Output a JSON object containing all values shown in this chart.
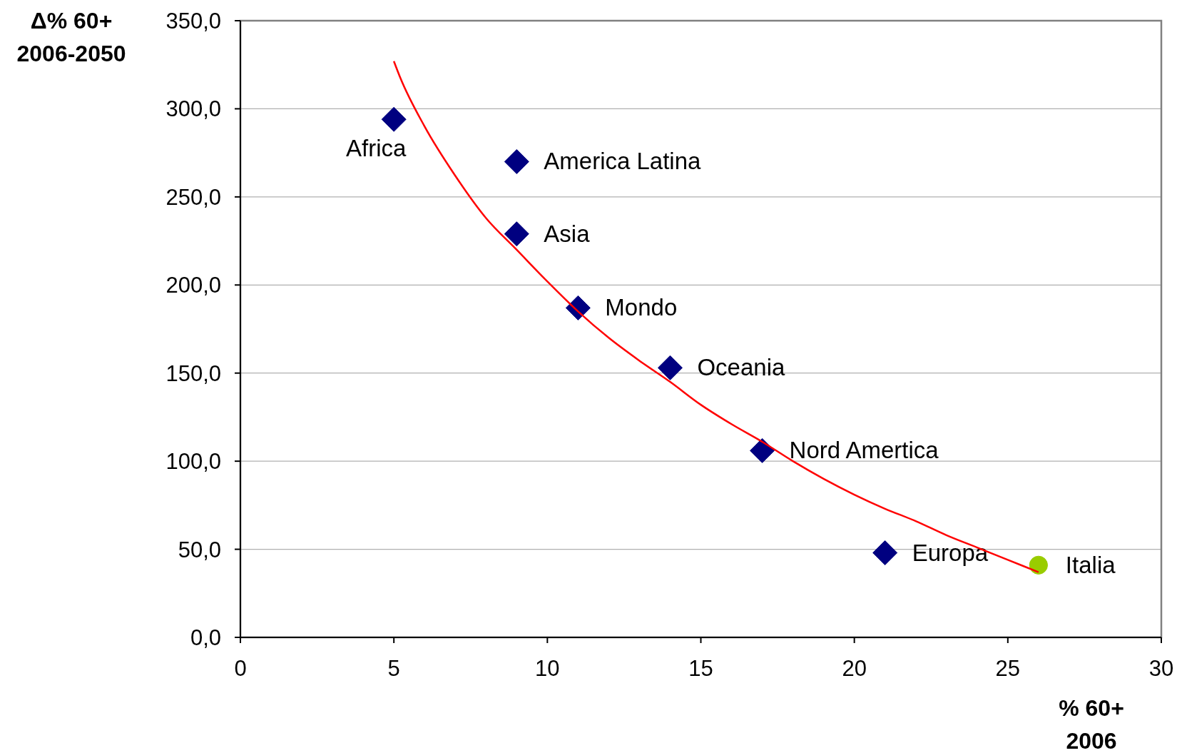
{
  "chart_data": {
    "type": "scatter",
    "xlabel": "% 60+\n2006",
    "ylabel": "Δ% 60+\n2006-2050",
    "xlim": [
      0,
      30
    ],
    "xticks": [
      0,
      5,
      10,
      15,
      20,
      25,
      30
    ],
    "ylim": [
      0,
      350
    ],
    "yticks": [
      {
        "value": 0,
        "label": "0,0"
      },
      {
        "value": 50,
        "label": "50,0"
      },
      {
        "value": 100,
        "label": "100,0"
      },
      {
        "value": 150,
        "label": "150,0"
      },
      {
        "value": 200,
        "label": "200,0"
      },
      {
        "value": 250,
        "label": "250,0"
      },
      {
        "value": 300,
        "label": "300,0"
      },
      {
        "value": 350,
        "label": "350,0"
      }
    ],
    "grid": "y",
    "series": [
      {
        "name": "Africa",
        "color": "#000080",
        "marker": "diamond",
        "x": [
          5
        ],
        "values": [
          294
        ]
      },
      {
        "name": "America Latina",
        "color": "#000080",
        "marker": "diamond",
        "x": [
          9
        ],
        "values": [
          270
        ]
      },
      {
        "name": "Asia",
        "color": "#000080",
        "marker": "diamond",
        "x": [
          9
        ],
        "values": [
          229
        ]
      },
      {
        "name": "Mondo",
        "color": "#000080",
        "marker": "diamond",
        "x": [
          11
        ],
        "values": [
          187
        ]
      },
      {
        "name": "Oceania",
        "color": "#000080",
        "marker": "diamond",
        "x": [
          14
        ],
        "values": [
          153
        ]
      },
      {
        "name": "Nord Amertica",
        "color": "#000080",
        "marker": "diamond",
        "x": [
          17
        ],
        "values": [
          106
        ]
      },
      {
        "name": "Europa",
        "color": "#000080",
        "marker": "diamond",
        "x": [
          21
        ],
        "values": [
          48
        ]
      },
      {
        "name": "Italia",
        "color": "#99cc00",
        "marker": "circle",
        "x": [
          26
        ],
        "values": [
          41
        ]
      },
      {
        "type": "line",
        "color": "#ff0000",
        "marker": "none",
        "x": [
          5,
          5.2,
          6,
          7,
          8,
          9,
          10,
          11,
          12,
          13,
          14,
          15,
          16,
          17,
          18,
          19,
          20,
          21,
          22,
          23,
          24,
          25,
          26
        ],
        "values": [
          327,
          318,
          290,
          262,
          238,
          220,
          202,
          185,
          170,
          157,
          145,
          132,
          121,
          111,
          100,
          90,
          81,
          73,
          66,
          58,
          51,
          44,
          37
        ]
      }
    ]
  }
}
